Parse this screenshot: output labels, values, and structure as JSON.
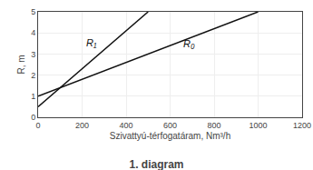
{
  "chart_data": {
    "type": "line",
    "title": "1. diagram",
    "xlabel": "Szivattyú-térfogatáram, Nm³/h",
    "ylabel": "R, m",
    "xlim": [
      0,
      1200
    ],
    "ylim": [
      0,
      5
    ],
    "xticks": [
      0,
      200,
      400,
      600,
      800,
      1000,
      1200
    ],
    "yticks": [
      0,
      1,
      2,
      3,
      4,
      5
    ],
    "grid": true,
    "series": [
      {
        "x": [
          0,
          500
        ],
        "values": [
          0.5,
          5.0
        ],
        "color": "#111111"
      },
      {
        "x": [
          0,
          1000
        ],
        "values": [
          1.0,
          5.0
        ],
        "color": "#111111"
      }
    ],
    "annotations": [
      {
        "text": "R₁",
        "x": 210,
        "y": 3.2,
        "color": "#111111"
      },
      {
        "text": "R₀",
        "x": 650,
        "y": 3.15,
        "color": "#111111"
      }
    ]
  }
}
